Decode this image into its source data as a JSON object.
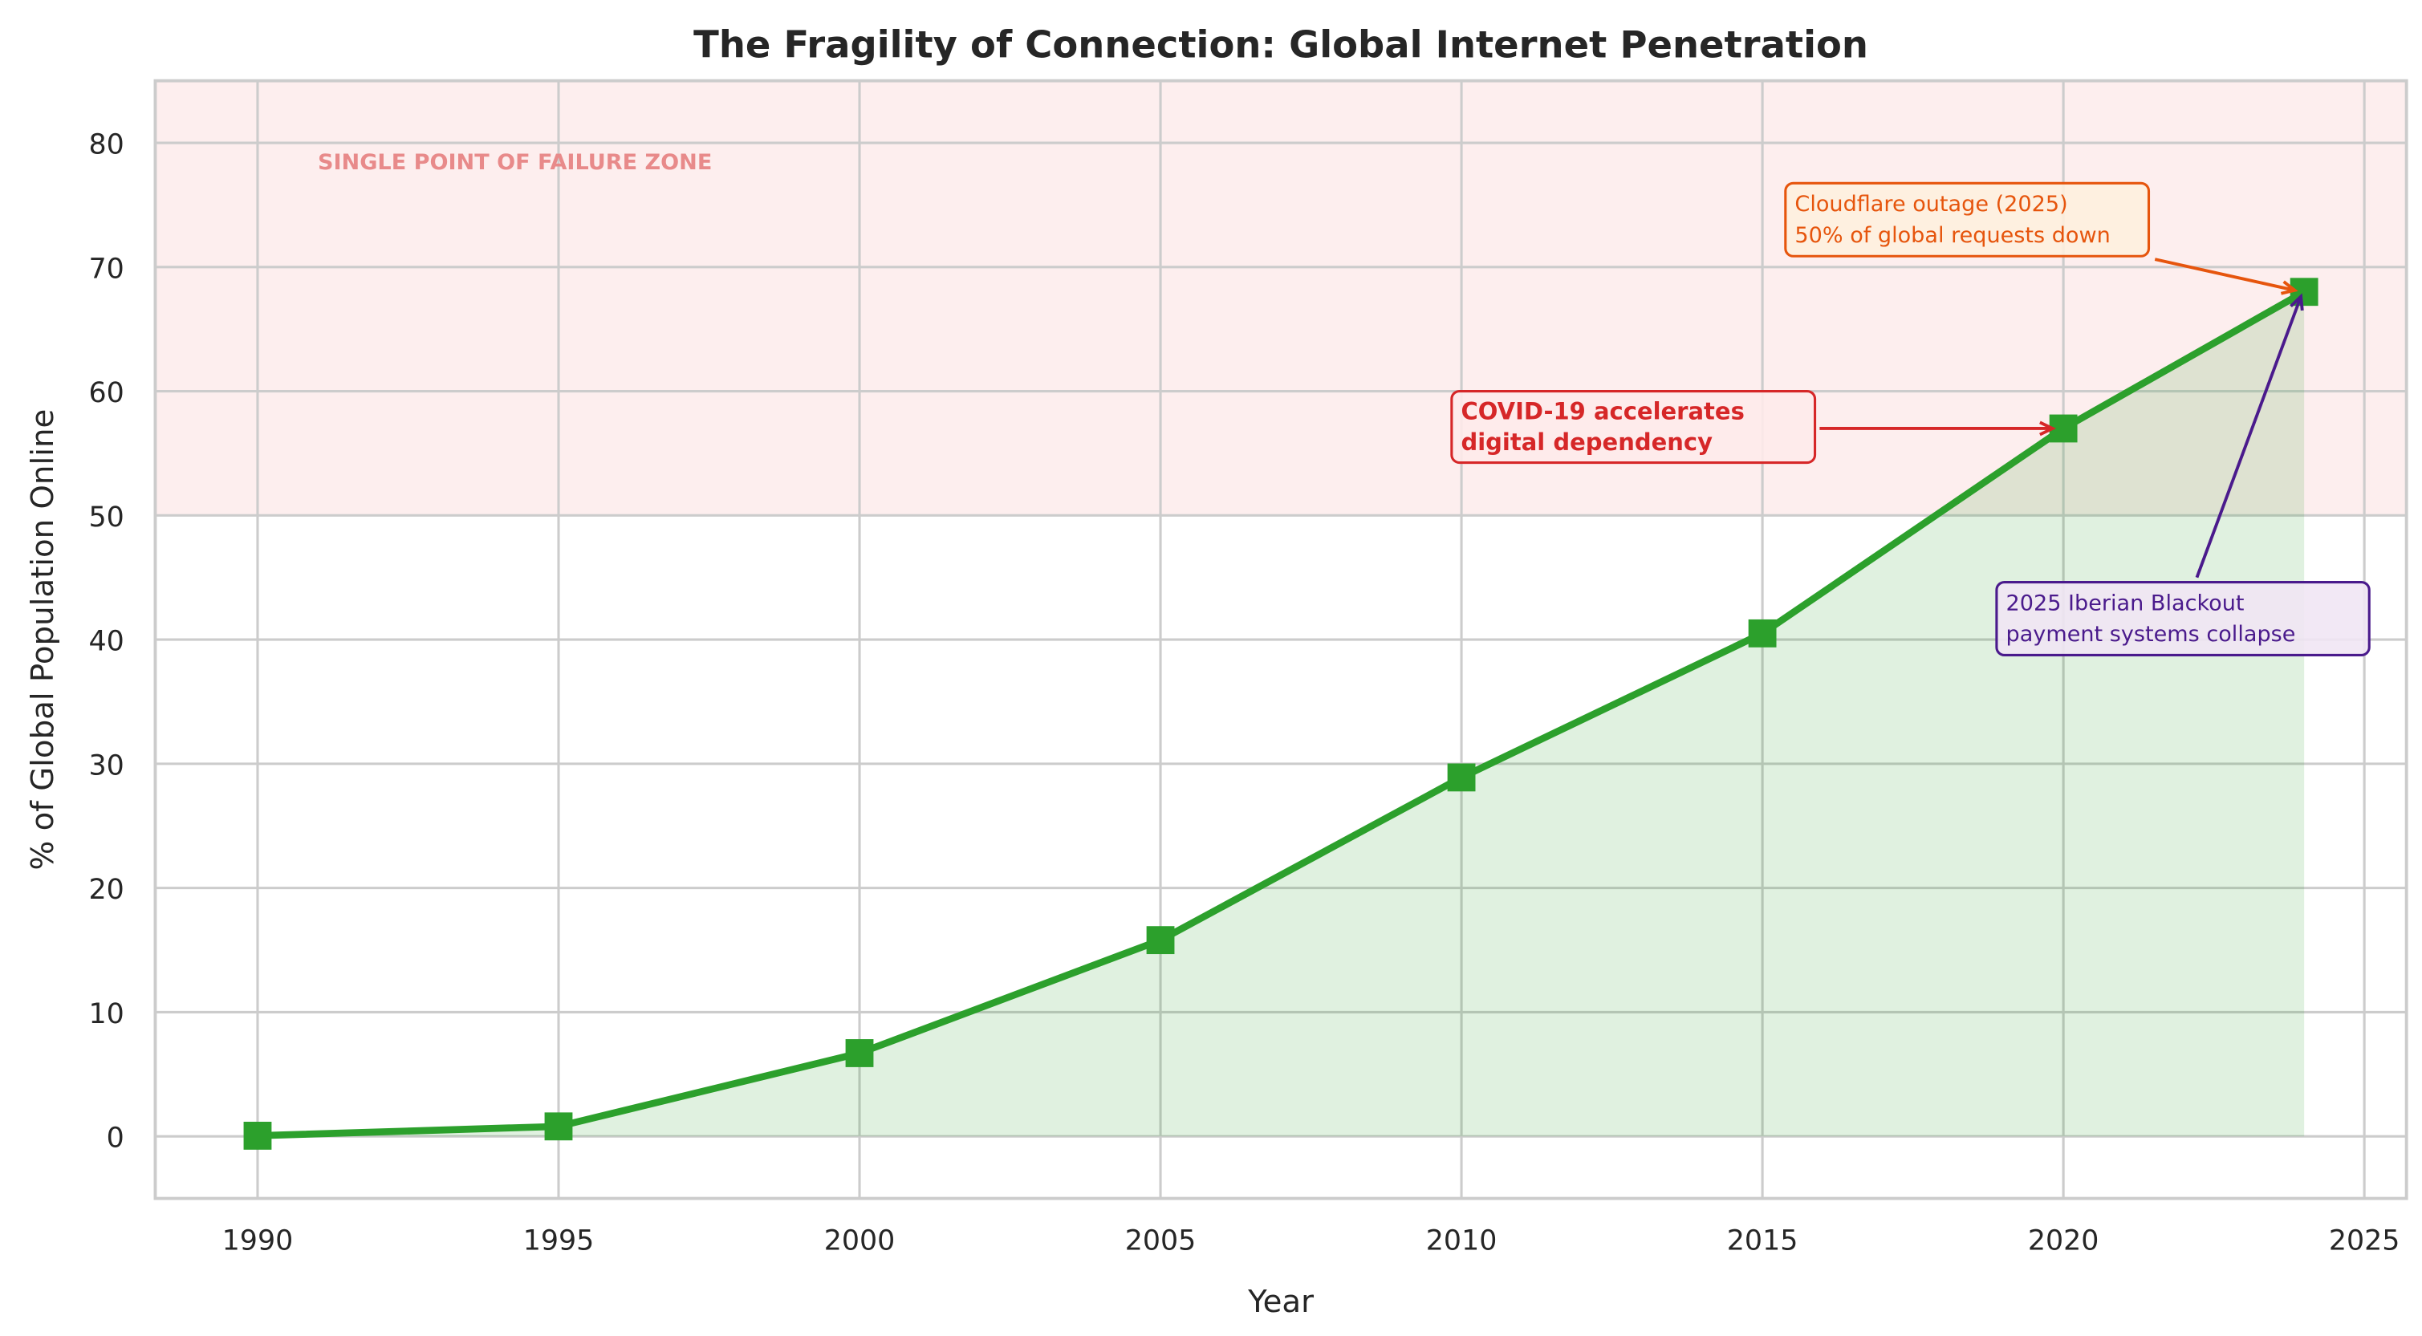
{
  "chart_data": {
    "type": "line",
    "title": "The Fragility of Connection: Global Internet Penetration",
    "xlabel": "Year",
    "ylabel": "% of Global Population Online",
    "x": [
      1990,
      1995,
      2000,
      2005,
      2010,
      2015,
      2020,
      2024
    ],
    "values": [
      0.05,
      0.8,
      6.7,
      15.8,
      28.9,
      40.5,
      57.0,
      68.0
    ],
    "xlim": [
      1988.3,
      2025.7
    ],
    "ylim": [
      -5,
      85
    ],
    "xticks": [
      "1990",
      "1995",
      "2000",
      "2005",
      "2010",
      "2015",
      "2020",
      "2025"
    ],
    "yticks": [
      "0",
      "10",
      "20",
      "30",
      "40",
      "50",
      "60",
      "70",
      "80"
    ],
    "grid": true,
    "area_fill": true,
    "marker": "square",
    "colors": {
      "line": "#2ca02c",
      "fill": "#2ca02c",
      "zone": "#fdeeee",
      "zone_text": "#e88a8a",
      "covid": "#d62728",
      "cloudflare": "#e6550d",
      "iberian": "#4a1a8c"
    },
    "zone": {
      "from": 50,
      "to": 85,
      "label": "SINGLE POINT OF FAILURE ZONE"
    },
    "annotations": [
      {
        "id": "covid",
        "lines": [
          "COVID-19 accelerates",
          "digital dependency"
        ],
        "target": [
          2020,
          57.0
        ],
        "bold": true
      },
      {
        "id": "cloudflare",
        "lines": [
          "Cloudflare outage (2025)",
          "50% of global requests down"
        ],
        "target": [
          2024,
          68.0
        ],
        "bold": false
      },
      {
        "id": "iberian",
        "lines": [
          "2025 Iberian Blackout",
          "payment systems collapse"
        ],
        "target": [
          2024,
          68.0
        ],
        "bold": false
      }
    ]
  }
}
